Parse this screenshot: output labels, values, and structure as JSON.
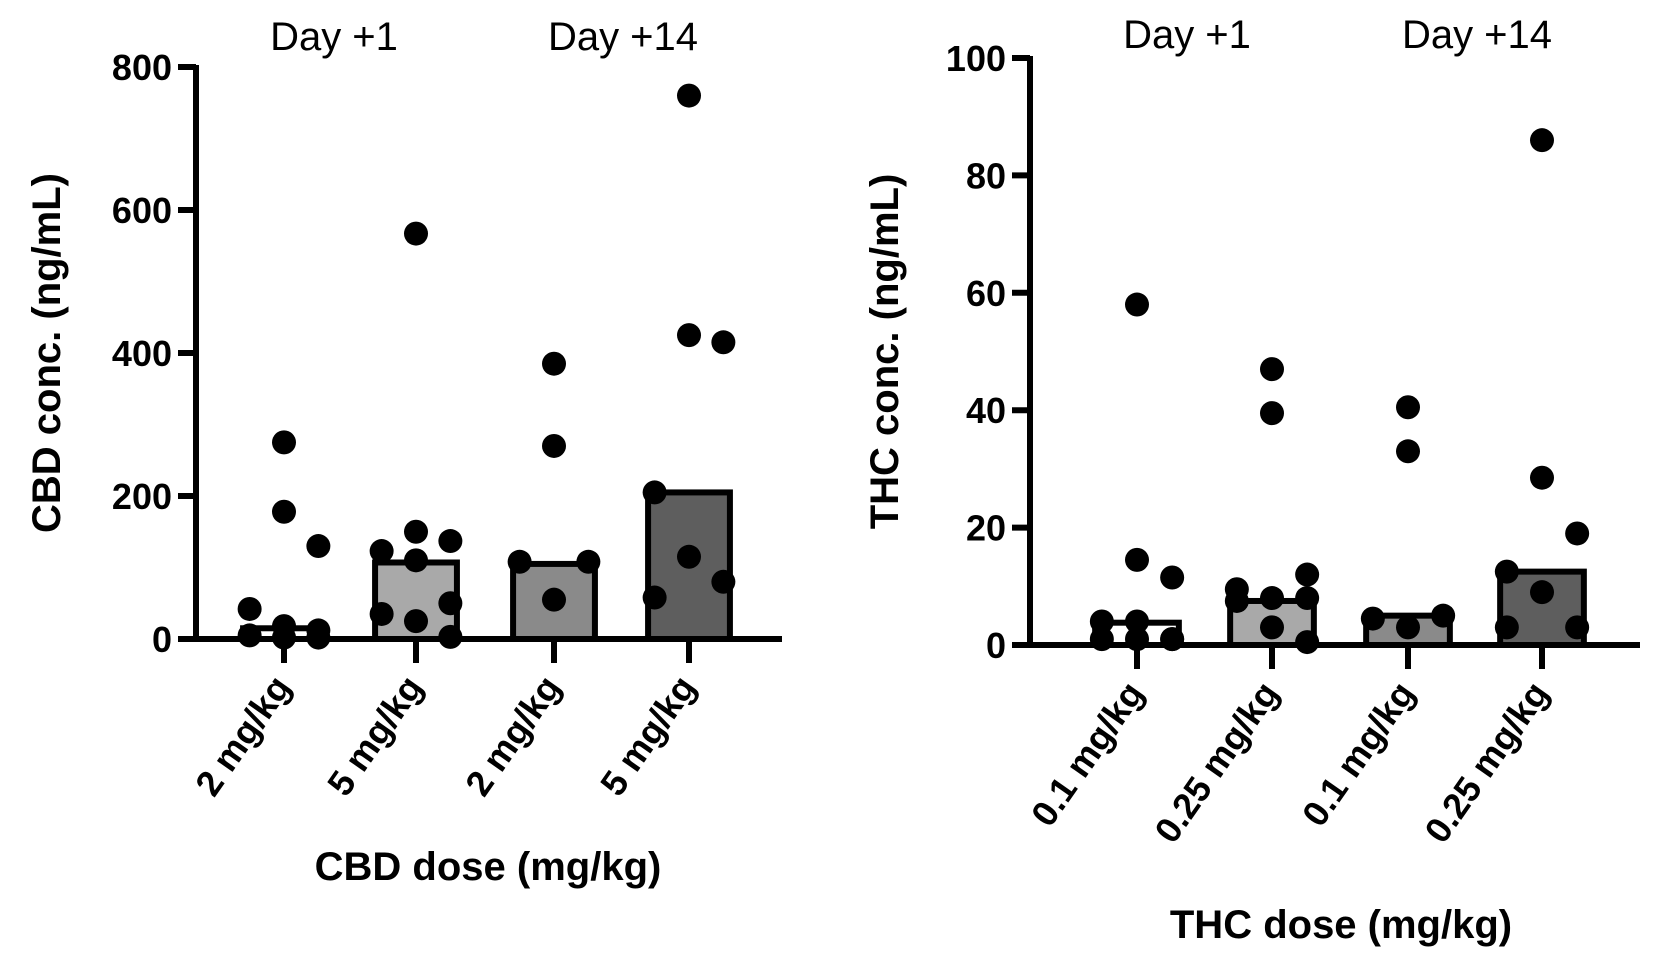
{
  "chart_data": [
    {
      "type": "bar",
      "id": "cbd",
      "ylabel": "CBD conc. (ng/mL)",
      "xlabel": "CBD dose (mg/kg)",
      "ylim": [
        0,
        800
      ],
      "yticks": [
        0,
        200,
        400,
        600,
        800
      ],
      "group_labels": [
        "Day +1",
        "Day +14"
      ],
      "categories": [
        "2 mg/kg",
        "5 mg/kg",
        "2 mg/kg",
        "5 mg/kg"
      ],
      "bar_fills": [
        "#ffffff",
        "#a9a9a9",
        "#8a8a8a",
        "#5e5e5e"
      ],
      "values": [
        15,
        107,
        105,
        205
      ],
      "points": [
        [
          275,
          178,
          130,
          42,
          18,
          12,
          5,
          2,
          2
        ],
        [
          567,
          150,
          137,
          123,
          110,
          50,
          35,
          25,
          3
        ],
        [
          385,
          270,
          108,
          108,
          55
        ],
        [
          760,
          425,
          415,
          205,
          115,
          80,
          58
        ]
      ]
    },
    {
      "type": "bar",
      "id": "thc",
      "ylabel": "THC conc. (ng/mL)",
      "xlabel": "THC dose (mg/kg)",
      "ylim": [
        0,
        100
      ],
      "yticks": [
        0,
        20,
        40,
        60,
        80,
        100
      ],
      "group_labels": [
        "Day +1",
        "Day +14"
      ],
      "categories": [
        "0.1 mg/kg",
        "0.25 mg/kg",
        "0.1 mg/kg",
        "0.25 mg/kg"
      ],
      "bar_fills": [
        "#ffffff",
        "#a9a9a9",
        "#8a8a8a",
        "#5e5e5e"
      ],
      "values": [
        3.8,
        7.5,
        5,
        12.5
      ],
      "points": [
        [
          58,
          14.5,
          11.5,
          4,
          4,
          1,
          1,
          1,
          1
        ],
        [
          47,
          39.5,
          12,
          9.5,
          8,
          8,
          7.5,
          3,
          0.5
        ],
        [
          40.5,
          33,
          5,
          4.5,
          3
        ],
        [
          86,
          28.5,
          19,
          12.5,
          9,
          3,
          3
        ]
      ]
    }
  ]
}
